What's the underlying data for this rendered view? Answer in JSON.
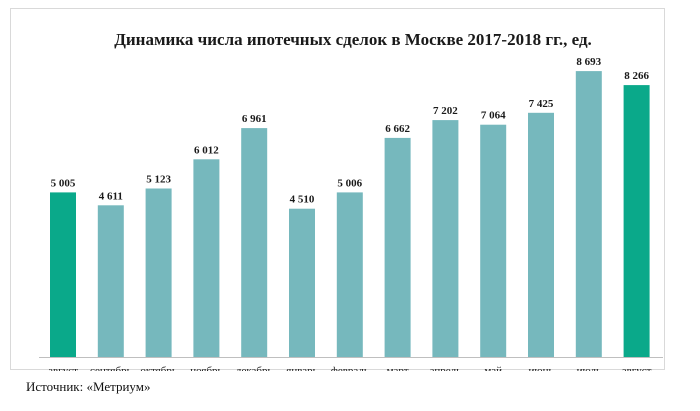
{
  "chart_data": {
    "type": "bar",
    "title": "Динамика числа ипотечных сделок в Москве 2017-2018 гг., ед.",
    "categories": [
      "август",
      "сентябрь",
      "октябрь",
      "ноябрь",
      "декабрь",
      "январь",
      "февраль",
      "март",
      "апрель",
      "май",
      "июнь",
      "июль",
      "август"
    ],
    "values": [
      5005,
      4611,
      5123,
      6012,
      6961,
      4510,
      5006,
      6662,
      7202,
      7064,
      7425,
      8693,
      8266
    ],
    "value_labels": [
      "5 005",
      "4 611",
      "5 123",
      "6 012",
      "6 961",
      "4 510",
      "5 006",
      "6 662",
      "7 202",
      "7 064",
      "7 425",
      "8 693",
      "8 266"
    ],
    "highlight_indices": [
      0,
      12
    ],
    "ylim": [
      0,
      9000
    ],
    "grid": false,
    "legend": "none",
    "colors": {
      "bar": "#76b8bd",
      "highlight": "#0aa98a",
      "axis": "#bfbfbf"
    }
  },
  "source_text": "Источник: «Метриум»"
}
